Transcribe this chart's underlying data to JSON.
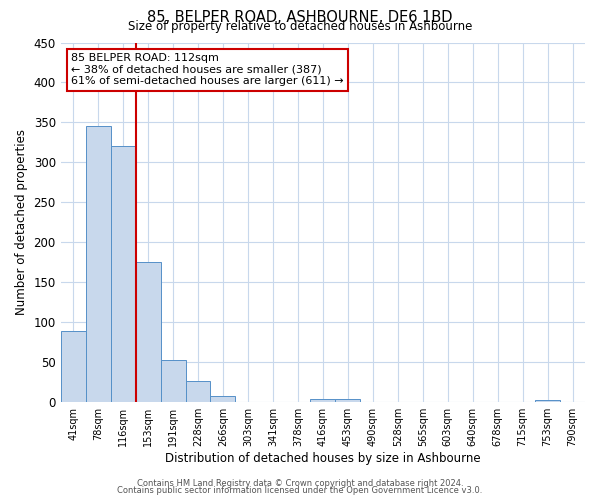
{
  "title": "85, BELPER ROAD, ASHBOURNE, DE6 1BD",
  "subtitle": "Size of property relative to detached houses in Ashbourne",
  "xlabel": "Distribution of detached houses by size in Ashbourne",
  "ylabel": "Number of detached properties",
  "categories": [
    "41sqm",
    "78sqm",
    "116sqm",
    "153sqm",
    "191sqm",
    "228sqm",
    "266sqm",
    "303sqm",
    "341sqm",
    "378sqm",
    "416sqm",
    "453sqm",
    "490sqm",
    "528sqm",
    "565sqm",
    "603sqm",
    "640sqm",
    "678sqm",
    "715sqm",
    "753sqm",
    "790sqm"
  ],
  "values": [
    89,
    345,
    320,
    175,
    53,
    27,
    8,
    0,
    0,
    0,
    4,
    4,
    0,
    0,
    0,
    0,
    0,
    0,
    0,
    3,
    0
  ],
  "bar_color": "#c8d8ec",
  "bar_edge_color": "#5590c8",
  "ylim": [
    0,
    450
  ],
  "yticks": [
    0,
    50,
    100,
    150,
    200,
    250,
    300,
    350,
    400,
    450
  ],
  "vline_color": "#cc0000",
  "vline_index": 2,
  "annotation_line1": "85 BELPER ROAD: 112sqm",
  "annotation_line2": "← 38% of detached houses are smaller (387)",
  "annotation_line3": "61% of semi-detached houses are larger (611) →",
  "footer_line1": "Contains HM Land Registry data © Crown copyright and database right 2024.",
  "footer_line2": "Contains public sector information licensed under the Open Government Licence v3.0.",
  "background_color": "#ffffff",
  "grid_color": "#c8d8ec"
}
